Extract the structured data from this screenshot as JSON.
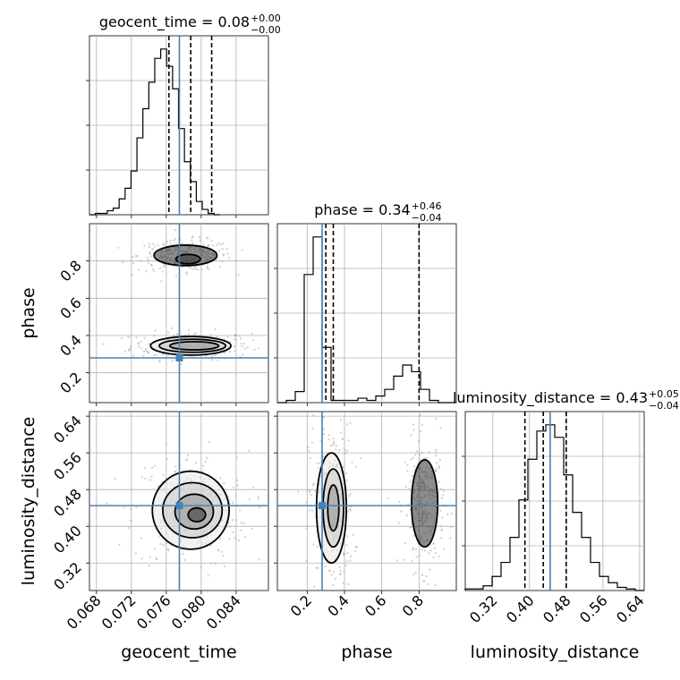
{
  "chart_data": {
    "type": "corner",
    "parameters": [
      "geocent_time",
      "phase",
      "luminosity_distance"
    ],
    "truths": {
      "geocent_time": 0.0775,
      "phase": 0.28,
      "luminosity_distance": 0.445
    },
    "titles": [
      {
        "param": "geocent_time",
        "text": "geocent_time = 0.08",
        "plus": "+0.00",
        "minus": "−0.00"
      },
      {
        "param": "phase",
        "text": "phase = 0.34",
        "plus": "+0.46",
        "minus": "−0.04"
      },
      {
        "param": "luminosity_distance",
        "text": "luminosity_distance = 0.43",
        "plus": "+0.05",
        "minus": "−0.04"
      }
    ],
    "ranges": {
      "geocent_time": [
        0.0672,
        0.0877
      ],
      "phase": [
        0.04,
        1.0
      ],
      "luminosity_distance": [
        0.26,
        0.65
      ]
    },
    "ticks": {
      "geocent_time": [
        0.068,
        0.072,
        0.076,
        0.08,
        0.084
      ],
      "geocent_time_labels": [
        "0.068",
        "0.072",
        "0.076",
        "0.080",
        "0.084"
      ],
      "phase": [
        0.2,
        0.4,
        0.6,
        0.8
      ],
      "phase_labels": [
        "0.2",
        "0.4",
        "0.6",
        "0.8"
      ],
      "luminosity_distance": [
        0.32,
        0.4,
        0.48,
        0.56,
        0.64
      ],
      "luminosity_distance_labels": [
        "0.32",
        "0.40",
        "0.48",
        "0.56",
        "0.64"
      ]
    },
    "quantiles": {
      "geocent_time": [
        0.0763,
        0.0788,
        0.0812
      ],
      "phase": [
        0.3,
        0.34,
        0.8
      ],
      "luminosity_distance": [
        0.39,
        0.43,
        0.48
      ]
    },
    "histograms": {
      "geocent_time": {
        "edges_start": 0.0672,
        "bin_width": 0.00068,
        "counts": [
          0,
          1,
          1,
          3,
          5,
          12,
          20,
          33,
          58,
          80,
          100,
          118,
          125,
          112,
          95,
          65,
          40,
          25,
          10,
          4,
          1,
          0
        ]
      },
      "phase": {
        "edges_start": 0.04,
        "bin_width": 0.048,
        "counts": [
          0,
          1,
          5,
          58,
          75,
          25,
          1,
          1,
          1,
          2,
          1,
          3,
          6,
          12,
          17,
          14,
          6,
          1,
          0,
          0
        ]
      },
      "luminosity_distance": {
        "edges_start": 0.26,
        "bin_width": 0.0195,
        "counts": [
          1,
          1,
          3,
          9,
          18,
          34,
          58,
          84,
          102,
          106,
          98,
          74,
          50,
          34,
          18,
          9,
          5,
          2,
          1,
          0
        ]
      }
    },
    "contours_2d": {
      "geocent_time-phase": [
        {
          "cx": 0.0788,
          "cy": 0.345,
          "rx": 0.0046,
          "ry": 0.05
        },
        {
          "cx": 0.079,
          "cy": 0.345,
          "rx": 0.0038,
          "ry": 0.035
        },
        {
          "cx": 0.0792,
          "cy": 0.345,
          "rx": 0.0028,
          "ry": 0.022
        },
        {
          "cx": 0.0782,
          "cy": 0.83,
          "rx": 0.0036,
          "ry": 0.055
        },
        {
          "cx": 0.0785,
          "cy": 0.81,
          "rx": 0.0014,
          "ry": 0.025
        }
      ],
      "geocent_time-luminosity_distance": [
        {
          "cx": 0.0788,
          "cy": 0.435,
          "rx": 0.0044,
          "ry": 0.085
        },
        {
          "cx": 0.079,
          "cy": 0.435,
          "rx": 0.0034,
          "ry": 0.06
        },
        {
          "cx": 0.0792,
          "cy": 0.432,
          "rx": 0.0022,
          "ry": 0.038
        },
        {
          "cx": 0.0795,
          "cy": 0.425,
          "rx": 0.001,
          "ry": 0.015
        }
      ],
      "phase-luminosity_distance": [
        {
          "cx": 0.33,
          "cy": 0.44,
          "rx": 0.08,
          "ry": 0.12
        },
        {
          "cx": 0.34,
          "cy": 0.44,
          "rx": 0.055,
          "ry": 0.085
        },
        {
          "cx": 0.34,
          "cy": 0.44,
          "rx": 0.03,
          "ry": 0.05
        },
        {
          "cx": 0.83,
          "cy": 0.45,
          "rx": 0.07,
          "ry": 0.095
        }
      ]
    },
    "grid": true,
    "truth_color": "#4682b4",
    "sample_color": "#a0a0a0",
    "contour_color": "#000000"
  }
}
